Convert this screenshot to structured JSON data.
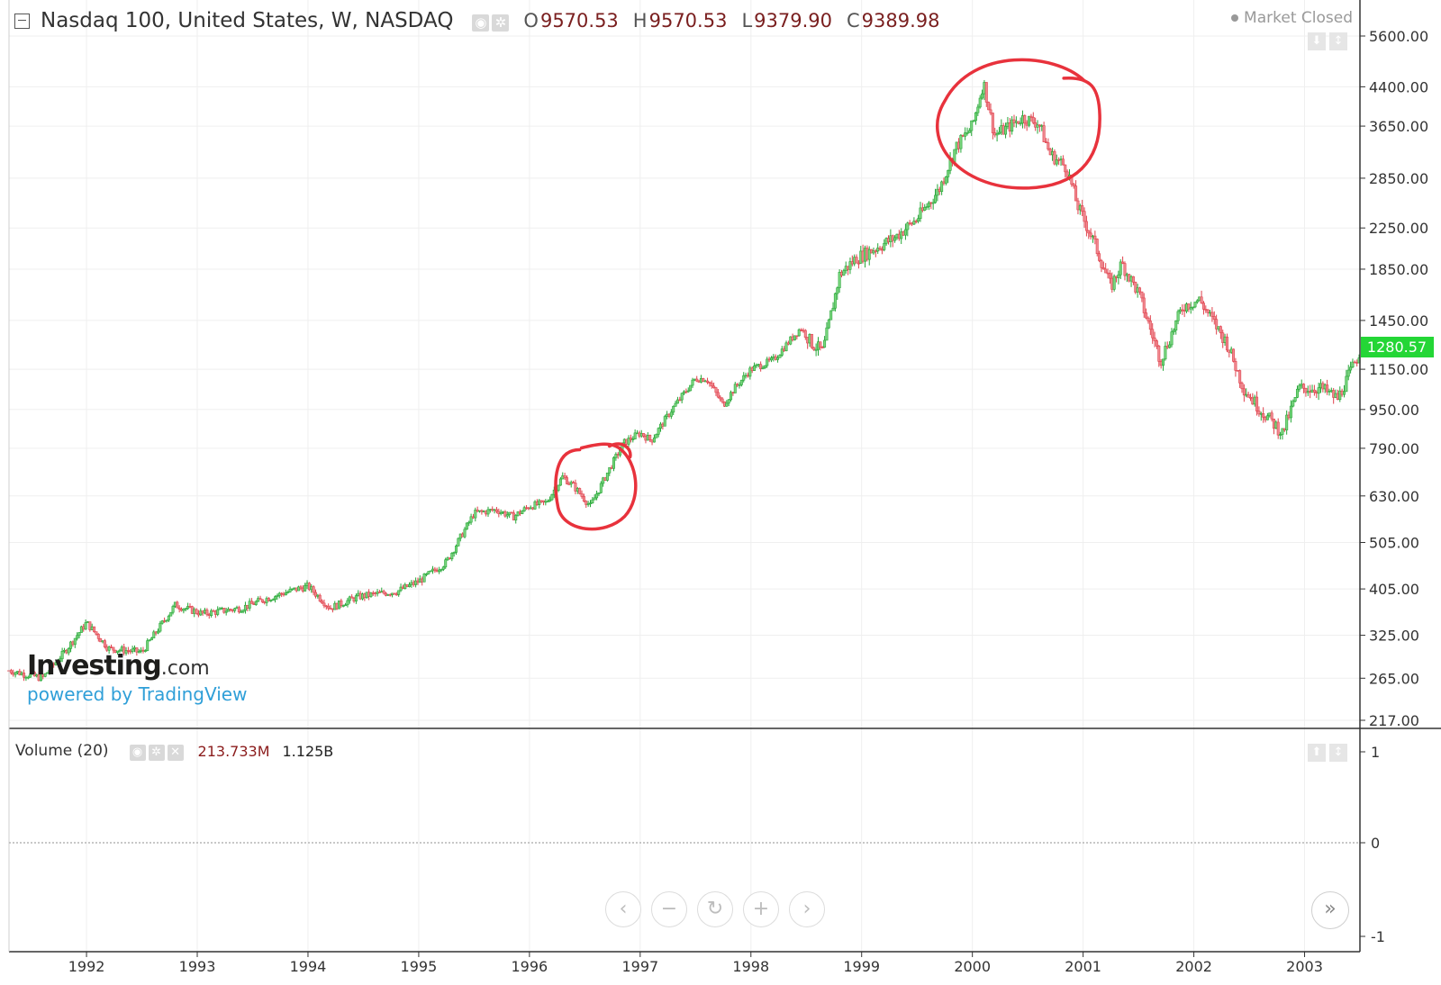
{
  "header": {
    "title": "Nasdaq 100, United States, W, NASDAQ",
    "ohlc": [
      {
        "label": "O",
        "value": "9570.53"
      },
      {
        "label": "H",
        "value": "9570.53"
      },
      {
        "label": "L",
        "value": "9379.90"
      },
      {
        "label": "C",
        "value": "9389.98"
      }
    ],
    "market_status": "Market Closed"
  },
  "logo": {
    "brand": "Investing",
    "suffix": ".com",
    "tagline": "powered by TradingView"
  },
  "volume": {
    "label": "Volume (20)",
    "value_a": "213.733M",
    "value_b": "1.125B",
    "ticks": [
      "1",
      "0",
      "-1"
    ]
  },
  "price_label": "1280.57",
  "colors": {
    "up": "#26a637",
    "down": "#e0424d",
    "annotation": "#e8323c",
    "price_tag": "#24d636",
    "axis": "#333333",
    "grid": "#efefef"
  },
  "icons": {
    "nav": [
      "chevron-left-icon",
      "minus-icon",
      "refresh-icon",
      "plus-icon",
      "chevron-right-icon"
    ],
    "forward": "double-chevron-right-icon"
  },
  "chart_data": {
    "type": "candlestick",
    "x_axis": {
      "ticks": [
        "1992",
        "1993",
        "1994",
        "1995",
        "1996",
        "1997",
        "1998",
        "1999",
        "2000",
        "2001",
        "2002",
        "2003"
      ],
      "range": [
        1991.3,
        2003.5
      ]
    },
    "y_axis": {
      "scale": "log",
      "ticks": [
        "5600.00",
        "4400.00",
        "3650.00",
        "2850.00",
        "2250.00",
        "1850.00",
        "1450.00",
        "1150.00",
        "950.00",
        "790.00",
        "630.00",
        "505.00",
        "405.00",
        "325.00",
        "265.00",
        "217.00"
      ],
      "range": [
        215,
        6200
      ]
    },
    "series": [
      {
        "x": [
          1991.3,
          1991.6,
          1991.8,
          1992.0,
          1992.2,
          1992.5,
          1992.8,
          1993.05,
          1993.4,
          1993.6,
          1993.9,
          1994.0,
          1994.2,
          1994.45,
          1994.6,
          1994.8,
          1995.0,
          1995.25,
          1995.5,
          1995.7,
          1995.85,
          1996.0,
          1996.15,
          1996.3,
          1996.4,
          1996.55,
          1996.7,
          1996.85,
          1997.0,
          1997.1,
          1997.3,
          1997.5,
          1997.6,
          1997.75,
          1997.85,
          1998.0,
          1998.2,
          1998.45,
          1998.55,
          1998.65,
          1998.8,
          1998.95,
          1999.05,
          1999.3,
          1999.5,
          1999.7,
          1999.85,
          2000.0,
          2000.1,
          2000.2,
          2000.3,
          2000.45,
          2000.6,
          2000.7,
          2000.85,
          2000.95,
          2001.1,
          2001.25,
          2001.35,
          2001.5,
          2001.7,
          2001.9,
          2002.05,
          2002.3,
          2002.45,
          2002.6,
          2002.8,
          2002.95,
          2003.15,
          2003.3,
          2003.5
        ],
        "close": [
          275,
          265,
          300,
          345,
          305,
          300,
          375,
          360,
          370,
          385,
          405,
          410,
          370,
          390,
          395,
          400,
          420,
          460,
          580,
          590,
          570,
          600,
          610,
          690,
          660,
          600,
          700,
          810,
          850,
          820,
          960,
          1100,
          1100,
          970,
          1050,
          1150,
          1200,
          1400,
          1300,
          1250,
          1800,
          1950,
          2000,
          2150,
          2350,
          2700,
          3300,
          3650,
          4500,
          3500,
          3600,
          3800,
          3700,
          3200,
          3000,
          2500,
          2100,
          1700,
          1900,
          1650,
          1200,
          1550,
          1600,
          1300,
          1050,
          950,
          850,
          1050,
          1050,
          1000,
          1250
        ]
      }
    ],
    "annotations": [
      {
        "shape": "ellipse",
        "center": [
          1996.6,
          650
        ]
      },
      {
        "shape": "ellipse",
        "center": [
          2000.5,
          3700
        ]
      }
    ]
  }
}
